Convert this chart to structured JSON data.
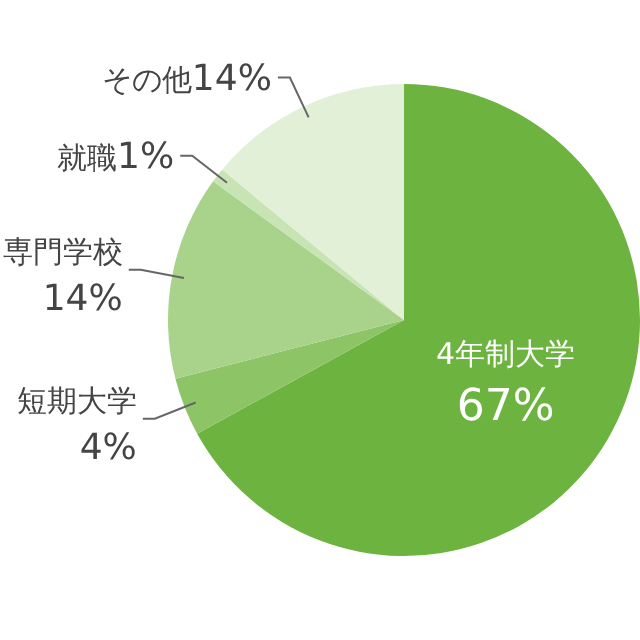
{
  "chart_data": {
    "type": "pie",
    "categories": [
      "4年制大学",
      "短期大学",
      "専門学校",
      "就職",
      "その他"
    ],
    "values": [
      67,
      4,
      14,
      1,
      14
    ],
    "value_labels": [
      "67%",
      "4%",
      "14%",
      "1%",
      "14%"
    ],
    "colors": [
      "#6cb33f",
      "#8dc465",
      "#a9d38a",
      "#c9e4b4",
      "#e3f0d8"
    ]
  }
}
